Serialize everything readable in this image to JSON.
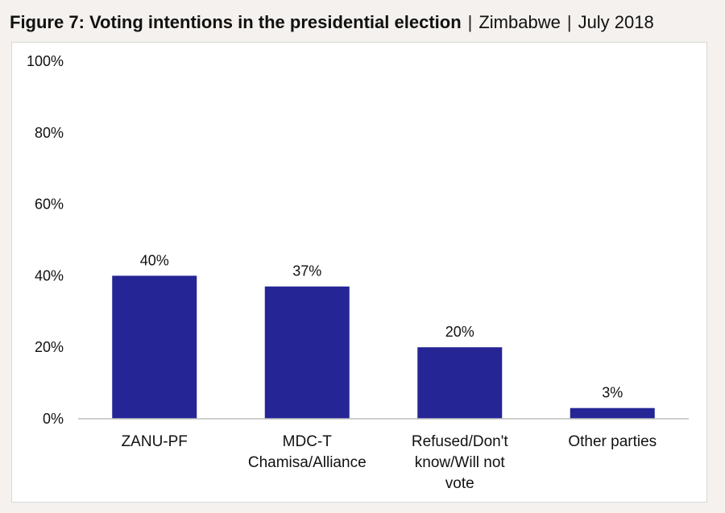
{
  "header": {
    "figure_title": "Figure 7: Voting intentions in the presidential election",
    "separator": "|",
    "country": "Zimbabwe",
    "date": "July 2018"
  },
  "chart_data": {
    "type": "bar",
    "title": "Figure 7: Voting intentions in the presidential election",
    "categories": [
      "ZANU-PF",
      "MDC-T Chamisa/Alliance",
      "Refused/Don't know/Will not vote",
      "Other parties"
    ],
    "category_lines": [
      [
        "ZANU-PF"
      ],
      [
        "MDC-T",
        "Chamisa/Alliance"
      ],
      [
        "Refused/Don't",
        "know/Will not",
        "vote"
      ],
      [
        "Other parties"
      ]
    ],
    "values": [
      40,
      37,
      20,
      3
    ],
    "data_labels": [
      "40%",
      "37%",
      "20%",
      "3%"
    ],
    "ylim": [
      0,
      100
    ],
    "yticks": [
      0,
      20,
      40,
      60,
      80,
      100
    ],
    "ytick_labels": [
      "0%",
      "20%",
      "40%",
      "60%",
      "80%",
      "100%"
    ],
    "xlabel": "",
    "ylabel": "",
    "grid": false,
    "legend": "none",
    "bar_color": "#252596",
    "axis_color": "#bfbfbf"
  }
}
